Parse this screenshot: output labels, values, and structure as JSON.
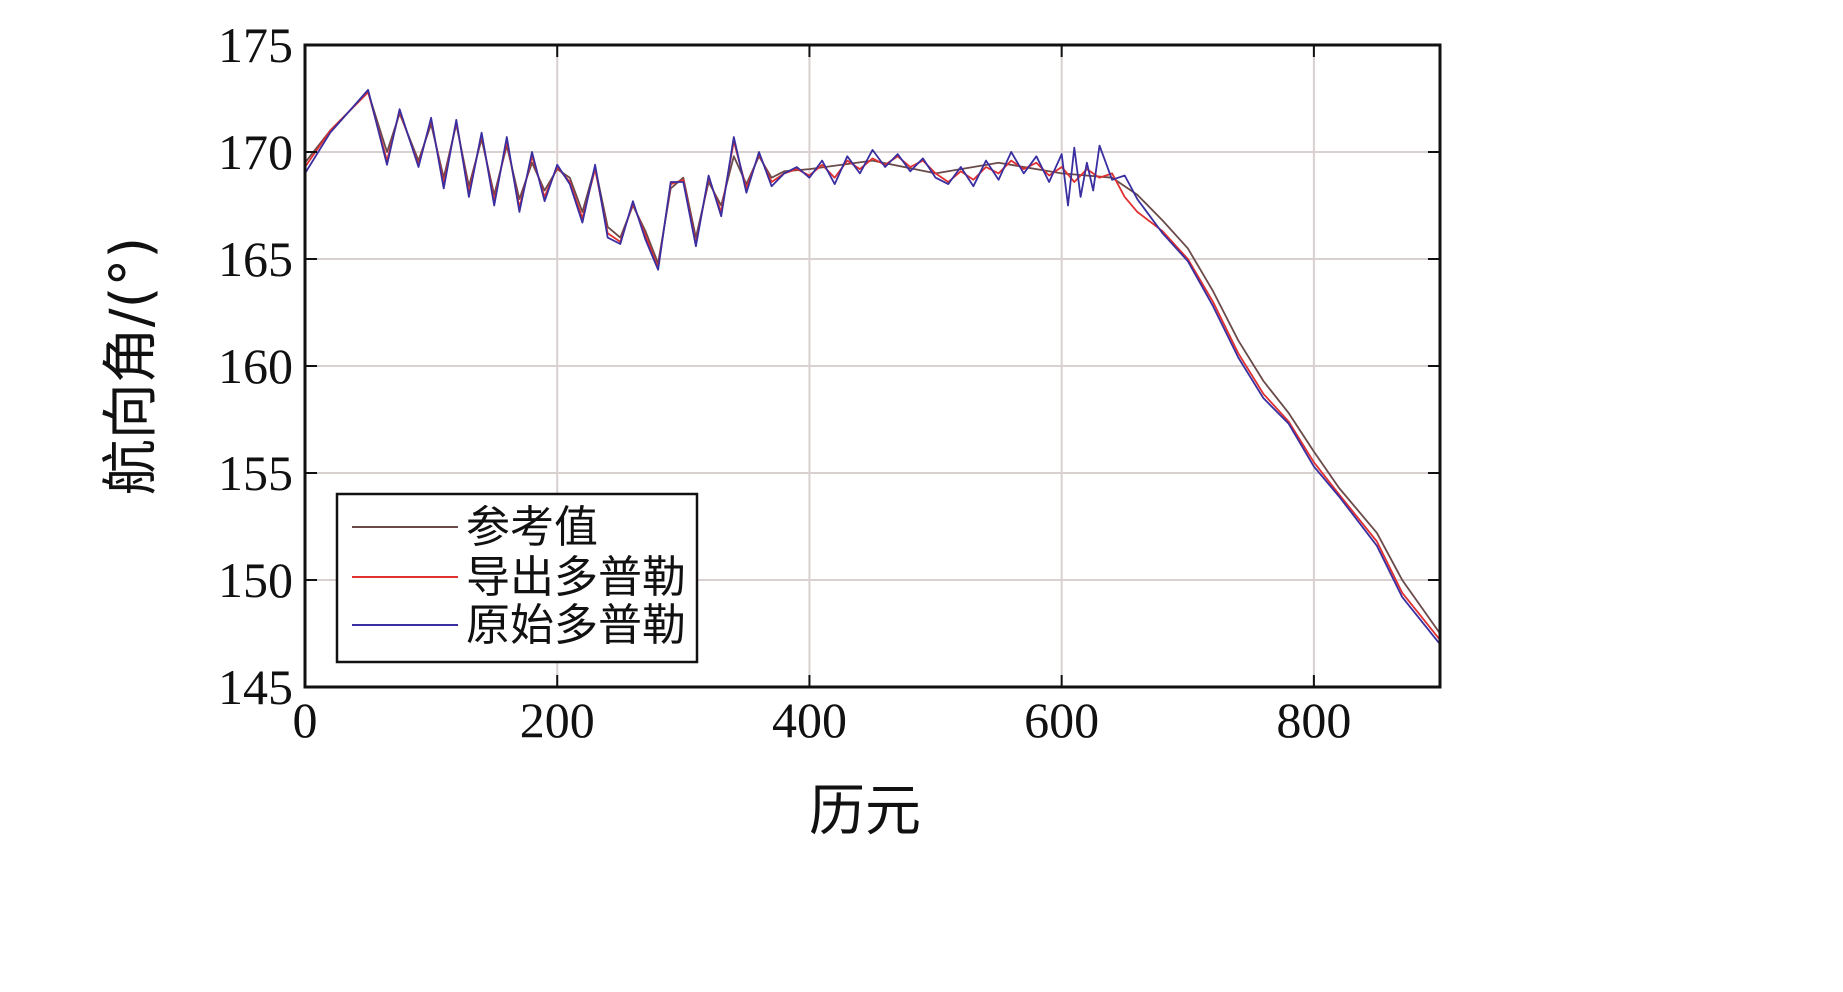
{
  "chart_data": {
    "type": "line",
    "title": "",
    "xlabel": "历元",
    "ylabel": "航向角/(°)",
    "xlim": [
      0,
      900
    ],
    "ylim": [
      145,
      175
    ],
    "xticks": [
      0,
      200,
      400,
      600,
      800
    ],
    "yticks": [
      145,
      150,
      155,
      160,
      165,
      170,
      175
    ],
    "grid": true,
    "legend_position": "bottom-left",
    "series": [
      {
        "name": "参考值",
        "color": "#6b4a4a",
        "x": [
          0,
          20,
          50,
          65,
          75,
          90,
          100,
          110,
          120,
          130,
          140,
          150,
          160,
          170,
          180,
          190,
          200,
          210,
          220,
          230,
          240,
          250,
          260,
          270,
          280,
          290,
          300,
          310,
          320,
          330,
          340,
          350,
          360,
          370,
          380,
          400,
          450,
          500,
          550,
          600,
          640,
          660,
          680,
          700,
          720,
          740,
          760,
          780,
          800,
          820,
          850,
          870,
          900
        ],
        "y": [
          169.5,
          171.0,
          172.8,
          170.0,
          171.8,
          169.6,
          171.3,
          168.8,
          171.3,
          168.4,
          170.6,
          168.0,
          170.3,
          167.8,
          169.5,
          168.2,
          169.2,
          168.8,
          167.2,
          169.3,
          166.5,
          166.0,
          167.5,
          166.3,
          164.8,
          168.3,
          168.8,
          166.0,
          168.6,
          167.5,
          169.8,
          168.5,
          169.8,
          168.8,
          169.1,
          169.2,
          169.6,
          169.0,
          169.5,
          169.0,
          168.8,
          168.0,
          166.8,
          165.5,
          163.5,
          161.2,
          159.3,
          157.8,
          156.0,
          154.3,
          152.2,
          150.0,
          147.5
        ]
      },
      {
        "name": "导出多普勒",
        "color": "#e03030",
        "x": [
          0,
          20,
          50,
          65,
          75,
          90,
          100,
          110,
          120,
          130,
          140,
          150,
          160,
          170,
          180,
          190,
          200,
          210,
          220,
          230,
          240,
          250,
          260,
          270,
          280,
          290,
          300,
          310,
          320,
          330,
          340,
          350,
          360,
          370,
          380,
          390,
          400,
          410,
          420,
          430,
          440,
          450,
          460,
          470,
          480,
          490,
          500,
          510,
          520,
          530,
          540,
          550,
          560,
          570,
          580,
          590,
          600,
          610,
          620,
          630,
          640,
          650,
          660,
          680,
          700,
          720,
          740,
          760,
          780,
          800,
          820,
          850,
          870,
          900
        ],
        "y": [
          169.3,
          171.0,
          172.8,
          169.6,
          171.9,
          169.4,
          171.5,
          168.5,
          171.4,
          168.1,
          170.8,
          167.7,
          170.5,
          167.4,
          169.8,
          167.9,
          169.3,
          168.6,
          166.9,
          169.2,
          166.2,
          165.8,
          167.6,
          166.1,
          164.6,
          168.5,
          168.7,
          165.7,
          168.8,
          167.2,
          170.5,
          168.3,
          169.9,
          168.6,
          169.0,
          169.2,
          168.9,
          169.4,
          168.8,
          169.6,
          169.2,
          169.7,
          169.4,
          169.8,
          169.3,
          169.6,
          169.0,
          168.6,
          169.1,
          168.7,
          169.3,
          169.0,
          169.6,
          169.2,
          169.5,
          168.9,
          169.3,
          168.6,
          169.2,
          168.8,
          169.0,
          167.9,
          167.2,
          166.3,
          165.0,
          163.0,
          160.6,
          158.7,
          157.4,
          155.5,
          154.0,
          151.8,
          149.4,
          147.2
        ]
      },
      {
        "name": "原始多普勒",
        "color": "#3a2fa0",
        "x": [
          0,
          20,
          50,
          65,
          75,
          90,
          100,
          110,
          120,
          130,
          140,
          150,
          160,
          170,
          180,
          190,
          200,
          210,
          220,
          230,
          240,
          250,
          260,
          270,
          280,
          290,
          300,
          310,
          320,
          330,
          340,
          350,
          360,
          370,
          380,
          390,
          400,
          410,
          420,
          430,
          440,
          450,
          460,
          470,
          480,
          490,
          500,
          510,
          520,
          530,
          540,
          550,
          560,
          570,
          580,
          590,
          600,
          605,
          610,
          615,
          620,
          625,
          630,
          640,
          650,
          660,
          680,
          700,
          720,
          740,
          760,
          780,
          800,
          820,
          850,
          870,
          900
        ],
        "y": [
          169.0,
          170.9,
          172.9,
          169.4,
          172.0,
          169.3,
          171.6,
          168.3,
          171.5,
          167.9,
          170.9,
          167.5,
          170.7,
          167.2,
          170.0,
          167.7,
          169.4,
          168.5,
          166.7,
          169.4,
          166.0,
          165.7,
          167.7,
          165.9,
          164.5,
          168.6,
          168.6,
          165.6,
          168.9,
          167.0,
          170.7,
          168.1,
          170.0,
          168.4,
          169.0,
          169.3,
          168.8,
          169.6,
          168.5,
          169.8,
          169.0,
          170.1,
          169.3,
          169.9,
          169.1,
          169.7,
          168.8,
          168.5,
          169.3,
          168.4,
          169.6,
          168.7,
          170.0,
          169.0,
          169.8,
          168.6,
          169.9,
          167.5,
          170.2,
          167.9,
          169.5,
          168.2,
          170.3,
          168.7,
          168.9,
          167.8,
          166.2,
          164.9,
          162.8,
          160.4,
          158.5,
          157.3,
          155.3,
          153.9,
          151.6,
          149.2,
          147.0
        ]
      }
    ]
  }
}
